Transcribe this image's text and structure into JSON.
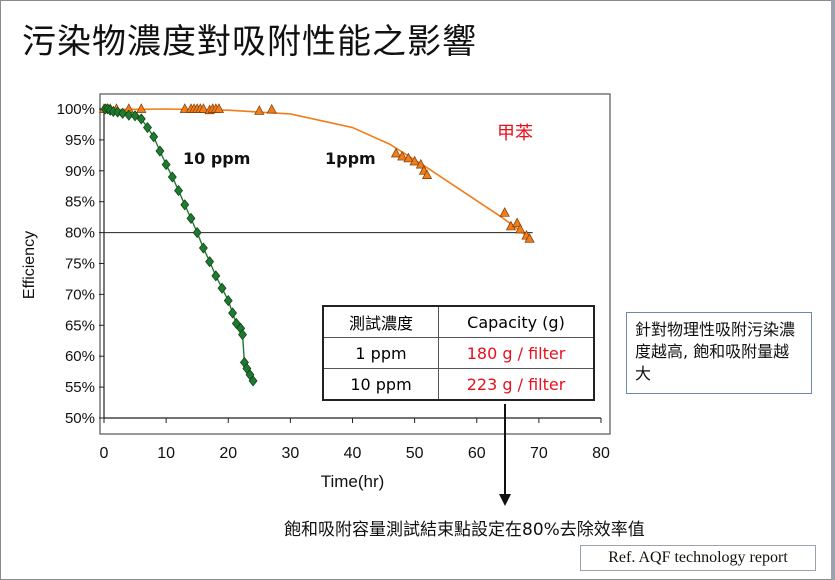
{
  "page": {
    "title": "污染物濃度對吸附性能之影響",
    "footnote": "飽和吸附容量測試結束點設定在80%去除效率值",
    "reference": "Ref. AQF technology report",
    "note": "針對物理性吸附污染濃度越高, 飽和吸附量越大"
  },
  "table": {
    "headers": [
      "測試濃度",
      "Capacity (g)"
    ],
    "rows": [
      {
        "conc": "1 ppm",
        "capacity": "180 g / filter"
      },
      {
        "conc": "10 ppm",
        "capacity": "223 g / filter"
      }
    ]
  },
  "chart_data": {
    "type": "scatter",
    "xlabel": "Time(hr)",
    "ylabel": "Efficiency",
    "xlim": [
      0,
      80
    ],
    "ylim": [
      50,
      100
    ],
    "x_ticks": [
      "0",
      "10",
      "20",
      "30",
      "40",
      "50",
      "60",
      "70",
      "80"
    ],
    "y_ticks": [
      "50%",
      "55%",
      "60%",
      "65%",
      "70%",
      "75%",
      "80%",
      "85%",
      "90%",
      "95%",
      "100%"
    ],
    "reference_line": 80,
    "grid": false,
    "annotations": [
      "10 ppm",
      "1ppm",
      "甲苯"
    ],
    "colors": {
      "ppm10": "#1e7a2e",
      "ppm1": "#f07d1a",
      "annotation_red": "#e8101c"
    },
    "series": [
      {
        "label": "10 ppm",
        "marker": "diamond",
        "points": [
          [
            0.2,
            100
          ],
          [
            0.6,
            100
          ],
          [
            1.0,
            99.8
          ],
          [
            1.5,
            99.6
          ],
          [
            2.2,
            99.5
          ],
          [
            3,
            99.3
          ],
          [
            4,
            99
          ],
          [
            5,
            98.9
          ],
          [
            6,
            98.4
          ],
          [
            7,
            97
          ],
          [
            8,
            95.5
          ],
          [
            9,
            93.2
          ],
          [
            10,
            91
          ],
          [
            11,
            89
          ],
          [
            12,
            86.8
          ],
          [
            13,
            84.5
          ],
          [
            14,
            82.3
          ],
          [
            15,
            80
          ],
          [
            16,
            77.5
          ],
          [
            17,
            75.3
          ],
          [
            18,
            73
          ],
          [
            19,
            71
          ],
          [
            20,
            69
          ],
          [
            20.7,
            67
          ],
          [
            21.3,
            65.3
          ],
          [
            22,
            64.5
          ],
          [
            22.3,
            63.5
          ],
          [
            22.6,
            59
          ],
          [
            23,
            58
          ],
          [
            23.5,
            57
          ],
          [
            24,
            56
          ]
        ]
      },
      {
        "label": "1ppm",
        "marker": "triangle",
        "points": [
          [
            0,
            100
          ],
          [
            0.5,
            100
          ],
          [
            1,
            100
          ],
          [
            2,
            100
          ],
          [
            4,
            100
          ],
          [
            6,
            100
          ],
          [
            13,
            100
          ],
          [
            14,
            100
          ],
          [
            14.5,
            100
          ],
          [
            15,
            100
          ],
          [
            15.5,
            100
          ],
          [
            16,
            100
          ],
          [
            17,
            99.8
          ],
          [
            17.5,
            100
          ],
          [
            18,
            100
          ],
          [
            18.5,
            100
          ],
          [
            25,
            99.7
          ],
          [
            27,
            99.9
          ],
          [
            47,
            92.8
          ],
          [
            48,
            92.3
          ],
          [
            49,
            92
          ],
          [
            50,
            91.5
          ],
          [
            51,
            91
          ],
          [
            51.5,
            90
          ],
          [
            52,
            89.3
          ],
          [
            64.5,
            83.2
          ],
          [
            65.5,
            81
          ],
          [
            66.5,
            81.5
          ],
          [
            67,
            80.5
          ],
          [
            68,
            79.5
          ],
          [
            68.5,
            79
          ]
        ]
      }
    ],
    "trend_1ppm": [
      [
        0,
        99.9
      ],
      [
        10,
        100
      ],
      [
        20,
        99.8
      ],
      [
        30,
        99.2
      ],
      [
        40,
        97
      ],
      [
        46,
        94.3
      ],
      [
        52,
        90.5
      ],
      [
        58,
        86.5
      ],
      [
        64,
        82.5
      ],
      [
        68,
        79.5
      ]
    ]
  }
}
